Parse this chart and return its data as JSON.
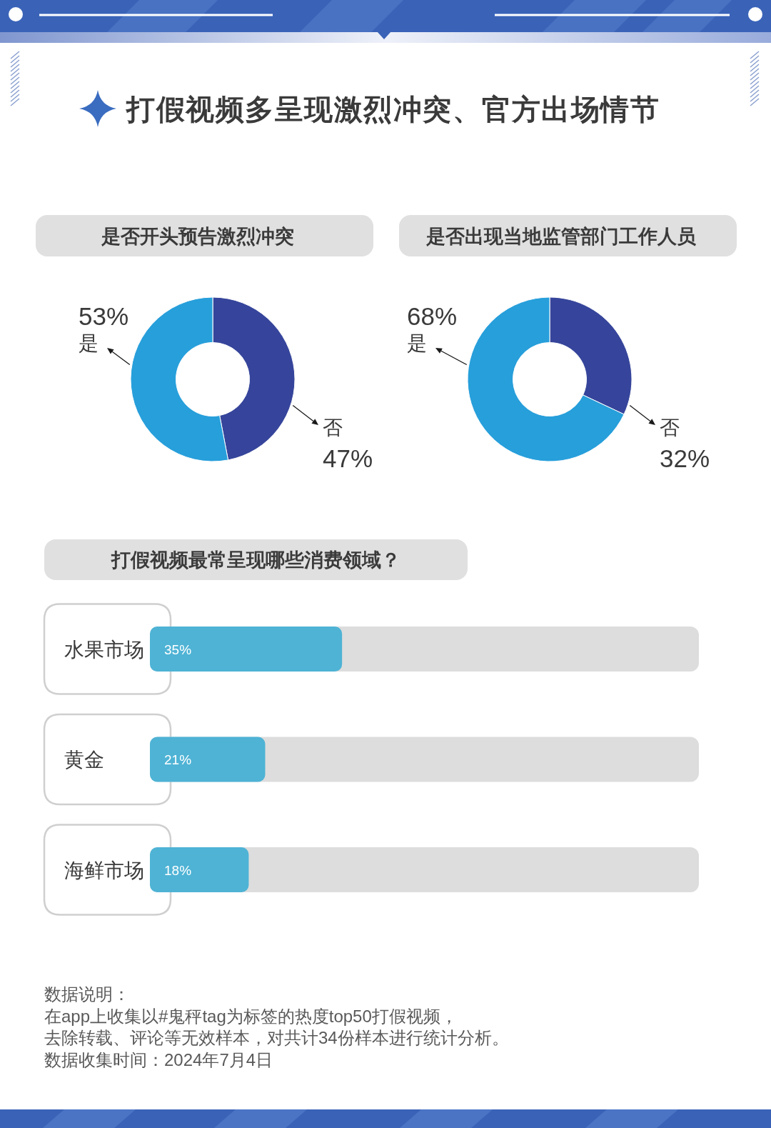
{
  "chart_data": [
    {
      "type": "other",
      "title": "打假视频多呈现激烈冲突、官方出场情节"
    },
    {
      "type": "donut",
      "title": "是否开头预告激烈冲突",
      "categories": [
        "否",
        "是"
      ],
      "values": [
        47,
        53
      ],
      "colors": [
        "#36459b",
        "#279fdb"
      ],
      "value_labels": [
        "47%",
        "53%"
      ]
    },
    {
      "type": "donut",
      "title": "是否出现当地监管部门工作人员",
      "categories": [
        "否",
        "是"
      ],
      "values": [
        32,
        68
      ],
      "colors": [
        "#36459b",
        "#279fdb"
      ],
      "value_labels": [
        "32%",
        "68%"
      ]
    },
    {
      "type": "bar",
      "orientation": "horizontal",
      "title": "打假视频最常呈现哪些消费领域？",
      "categories": [
        "水果市场",
        "黄金",
        "海鲜市场"
      ],
      "values": [
        35,
        21,
        18
      ],
      "color": "#4eb3d5",
      "xlim": [
        0,
        100
      ],
      "value_labels": [
        "35%",
        "21%",
        "18%"
      ],
      "annotations": [
        "数据说明：",
        "在app上收集以#鬼秤tag为标签的热度top50打假视频，",
        "去除转载、评论等无效样本，对共计34份样本进行统计分析。",
        "数据收集时间：2024年7月4日"
      ]
    }
  ]
}
